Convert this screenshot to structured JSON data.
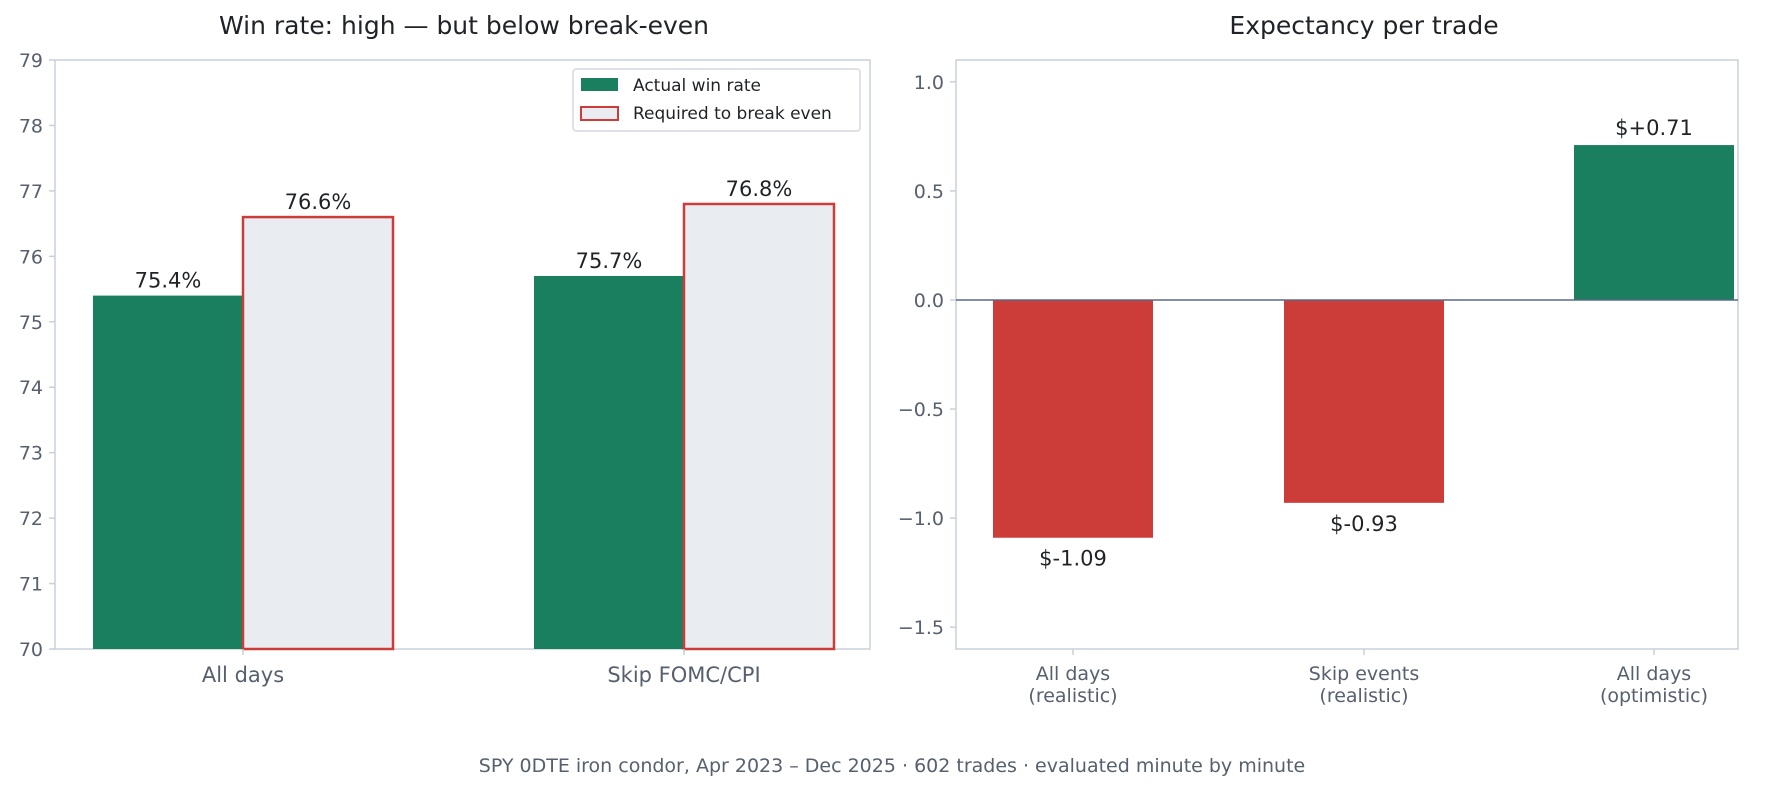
{
  "colors": {
    "actual": "#1a7f5f",
    "required_fill": "#e9ecf1",
    "required_edge": "#cc3c39",
    "negative": "#cc3c39",
    "positive": "#1a7f5f",
    "axis": "#c9d0da",
    "zero_line": "#5a6a85"
  },
  "caption": "SPY 0DTE iron condor, Apr 2023 – Dec 2025 · 602 trades · evaluated minute by minute",
  "chart_data": [
    {
      "type": "bar",
      "title": "Win rate: high — but below break-even",
      "categories": [
        "All days",
        "Skip FOMC/CPI"
      ],
      "series": [
        {
          "name": "Actual win rate",
          "values": [
            75.4,
            75.7
          ],
          "labels": [
            "75.4%",
            "75.7%"
          ]
        },
        {
          "name": "Required to break even",
          "values": [
            76.6,
            76.8
          ],
          "labels": [
            "76.6%",
            "76.8%"
          ]
        }
      ],
      "ylim": [
        70,
        79
      ],
      "yticks": [
        "70",
        "71",
        "72",
        "73",
        "74",
        "75",
        "76",
        "77",
        "78",
        "79"
      ],
      "legend": "top-right",
      "grid": false
    },
    {
      "type": "bar",
      "title": "Expectancy per trade",
      "categories": [
        [
          "All days",
          "(realistic)"
        ],
        [
          "Skip events",
          "(realistic)"
        ],
        [
          "All days",
          "(optimistic)"
        ]
      ],
      "values": [
        -1.09,
        -0.93,
        0.71
      ],
      "labels": [
        "$-1.09",
        "$-0.93",
        "$+0.71"
      ],
      "ylim": [
        -1.6,
        1.1
      ],
      "yticks": [
        "−1.5",
        "−1.0",
        "−0.5",
        "0.0",
        "0.5",
        "1.0"
      ],
      "grid": false
    }
  ]
}
